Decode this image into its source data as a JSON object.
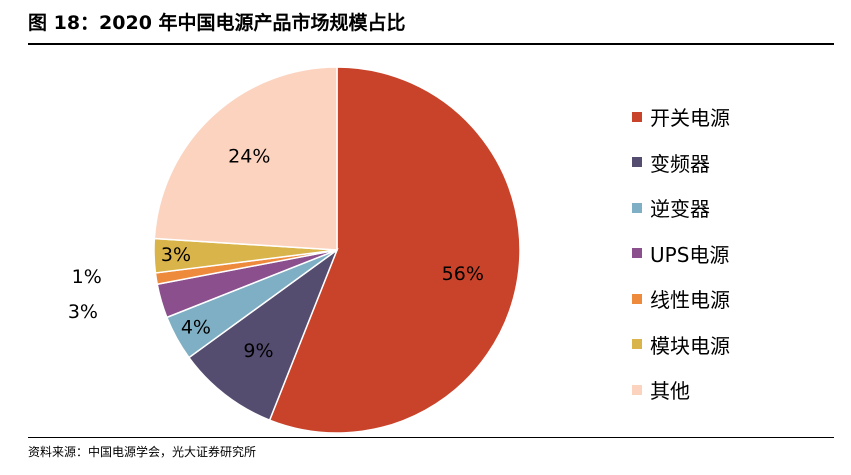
{
  "title": "图 18：2020 年中国电源产品市场规模占比",
  "source": "资料来源：中国电源学会，光大证券研究所",
  "chart_data": {
    "type": "pie",
    "legend_position": "right",
    "start_angle_deg": 0,
    "direction": "clockwise",
    "slices": [
      {
        "label": "开关电源",
        "value": 56,
        "value_label": "56%",
        "color": "#C8432A",
        "label_placement": "inside"
      },
      {
        "label": "变频器",
        "value": 9,
        "value_label": "9%",
        "color": "#554D70",
        "label_placement": "inside"
      },
      {
        "label": "逆变器",
        "value": 4,
        "value_label": "4%",
        "color": "#7FAFC4",
        "label_placement": "inside"
      },
      {
        "label": "UPS电源",
        "value": 3,
        "value_label": "3%",
        "color": "#8B4F8D",
        "label_placement": "outside"
      },
      {
        "label": "线性电源",
        "value": 1,
        "value_label": "1%",
        "color": "#EE8A3C",
        "label_placement": "outside"
      },
      {
        "label": "模块电源",
        "value": 3,
        "value_label": "3%",
        "color": "#D9B44A",
        "label_placement": "inside"
      },
      {
        "label": "其他",
        "value": 24,
        "value_label": "24%",
        "color": "#FCD3BF",
        "label_placement": "inside"
      }
    ]
  }
}
